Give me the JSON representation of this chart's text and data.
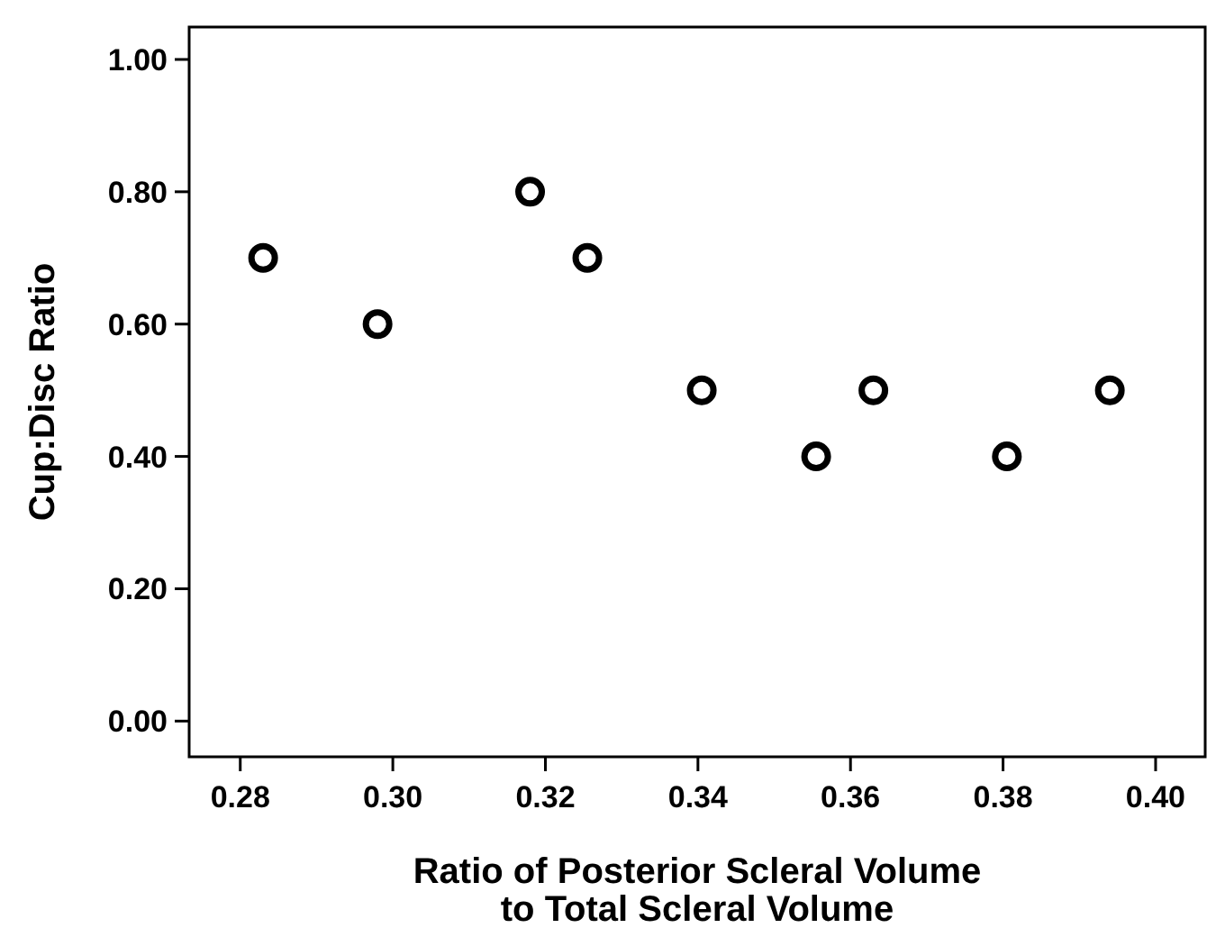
{
  "chart_data": {
    "type": "scatter",
    "xlabel": "Ratio of Posterior Scleral Volume\nto Total Scleral Volume",
    "ylabel": "Cup:Disc Ratio",
    "x": [
      0.283,
      0.298,
      0.318,
      0.3255,
      0.3405,
      0.3555,
      0.363,
      0.3805,
      0.394
    ],
    "values": [
      0.7,
      0.6,
      0.8,
      0.7,
      0.5,
      0.4,
      0.5,
      0.4,
      0.5
    ],
    "color": "#000000",
    "marker": "circle",
    "xlim": [
      0.2733,
      0.4065
    ],
    "ylim": [
      -0.054,
      1.049
    ],
    "xticks": [
      {
        "value": 0.28,
        "label": "0.28"
      },
      {
        "value": 0.3,
        "label": "0.30"
      },
      {
        "value": 0.32,
        "label": "0.32"
      },
      {
        "value": 0.34,
        "label": "0.34"
      },
      {
        "value": 0.36,
        "label": "0.36"
      },
      {
        "value": 0.38,
        "label": "0.38"
      },
      {
        "value": 0.4,
        "label": "0.40"
      }
    ],
    "yticks": [
      {
        "value": 0,
        "label": "0.00"
      },
      {
        "value": 0.2,
        "label": "0.20"
      },
      {
        "value": 0.4,
        "label": "0.40"
      },
      {
        "value": 0.6,
        "label": "0.60"
      },
      {
        "value": 0.8,
        "label": "0.80"
      },
      {
        "value": 1,
        "label": "1.00"
      }
    ],
    "grid": false
  }
}
